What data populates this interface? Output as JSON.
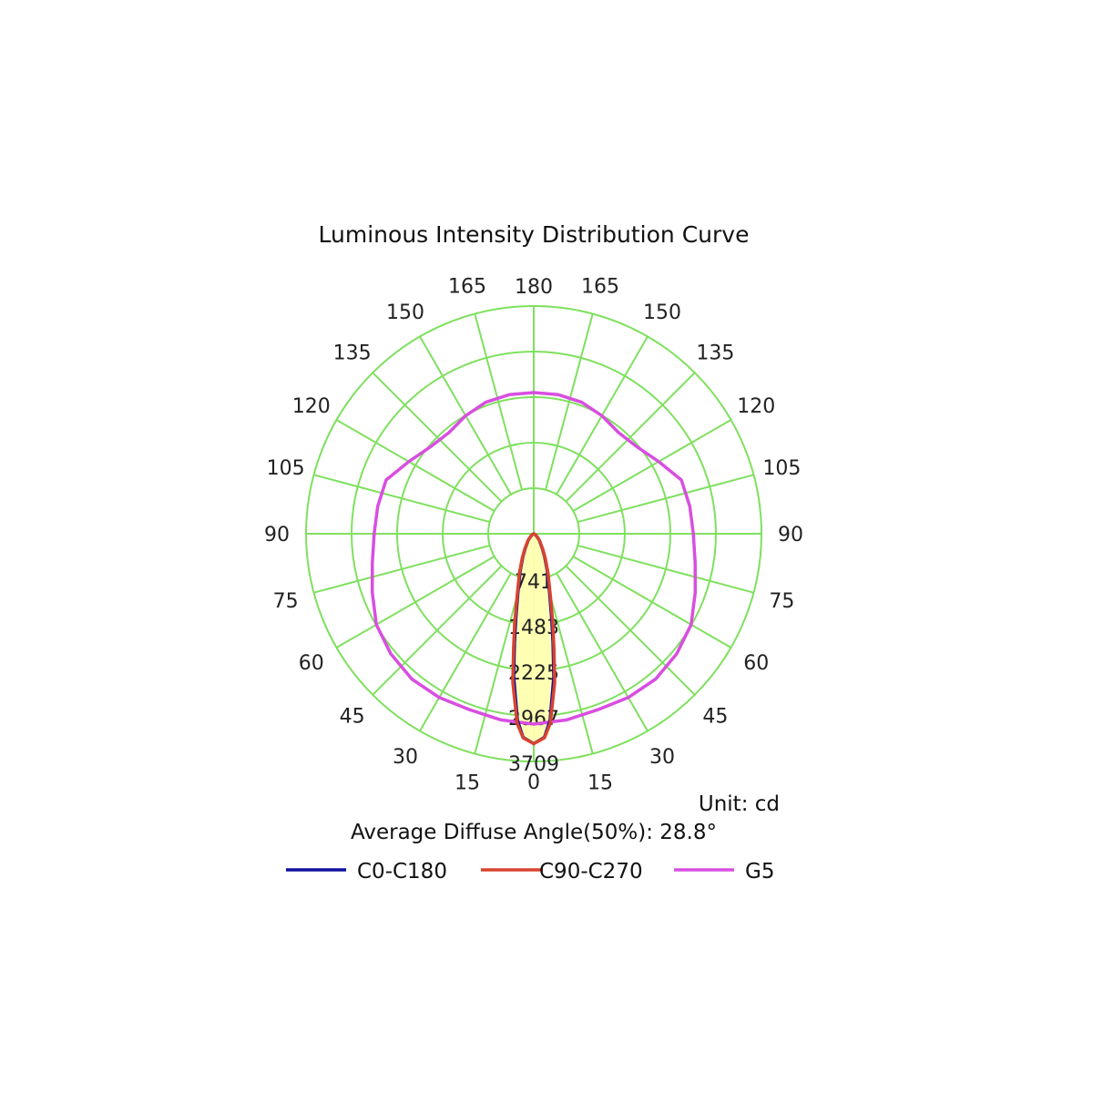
{
  "chart_data": {
    "type": "polar",
    "title": "Luminous Intensity Distribution Curve",
    "unit_label": "Unit: cd",
    "angle_note": "Average Diffuse Angle(50%): 28.8°",
    "radial_ticks": [
      741,
      1483,
      2225,
      2967,
      3709
    ],
    "r_max": 3709,
    "angle_tick_labels": {
      "left": [
        "0",
        "15",
        "30",
        "45",
        "60",
        "75",
        "90",
        "105",
        "120",
        "135",
        "150",
        "165",
        "180"
      ],
      "right": [
        "15",
        "30",
        "45",
        "60",
        "75",
        "90",
        "105",
        "120",
        "135",
        "150",
        "165"
      ]
    },
    "grid_color": "#7fe05f",
    "series": [
      {
        "name": "C0-C180",
        "color": "#1010a0",
        "fill": "#ffffb0",
        "points": [
          {
            "theta": 0,
            "r": 3420
          },
          {
            "theta": 3,
            "r": 3320
          },
          {
            "theta": 5,
            "r": 3050
          },
          {
            "theta": 8,
            "r": 2350
          },
          {
            "theta": 10,
            "r": 1800
          },
          {
            "theta": 12,
            "r": 1400
          },
          {
            "theta": 15,
            "r": 1000
          },
          {
            "theta": 20,
            "r": 640
          },
          {
            "theta": 25,
            "r": 420
          },
          {
            "theta": 30,
            "r": 280
          },
          {
            "theta": 40,
            "r": 140
          },
          {
            "theta": 50,
            "r": 60
          },
          {
            "theta": 60,
            "r": 20
          },
          {
            "theta": 90,
            "r": 0
          }
        ]
      },
      {
        "name": "C90-C270",
        "color": "#d8432f",
        "fill": "#ffffb0",
        "points": [
          {
            "theta": 0,
            "r": 3420
          },
          {
            "theta": 3,
            "r": 3330
          },
          {
            "theta": 5,
            "r": 3100
          },
          {
            "theta": 8,
            "r": 2450
          },
          {
            "theta": 10,
            "r": 1900
          },
          {
            "theta": 12,
            "r": 1500
          },
          {
            "theta": 15,
            "r": 1050
          },
          {
            "theta": 20,
            "r": 680
          },
          {
            "theta": 25,
            "r": 450
          },
          {
            "theta": 30,
            "r": 300
          },
          {
            "theta": 40,
            "r": 150
          },
          {
            "theta": 50,
            "r": 70
          },
          {
            "theta": 60,
            "r": 25
          },
          {
            "theta": 90,
            "r": 0
          }
        ]
      },
      {
        "name": "G5",
        "color": "#d84ee0",
        "points": [
          {
            "theta": 0,
            "r": 3100
          },
          {
            "theta": 10,
            "r": 3080
          },
          {
            "theta": 20,
            "r": 3050
          },
          {
            "theta": 30,
            "r": 3080
          },
          {
            "theta": 40,
            "r": 3090
          },
          {
            "theta": 50,
            "r": 3040
          },
          {
            "theta": 60,
            "r": 2960
          },
          {
            "theta": 70,
            "r": 2800
          },
          {
            "theta": 80,
            "r": 2670
          },
          {
            "theta": 90,
            "r": 2600
          },
          {
            "theta": 100,
            "r": 2580
          },
          {
            "theta": 110,
            "r": 2560
          },
          {
            "theta": 120,
            "r": 2350
          },
          {
            "theta": 130,
            "r": 2200
          },
          {
            "theta": 140,
            "r": 2150
          },
          {
            "theta": 150,
            "r": 2220
          },
          {
            "theta": 160,
            "r": 2280
          },
          {
            "theta": 170,
            "r": 2300
          },
          {
            "theta": 180,
            "r": 2300
          }
        ]
      }
    ],
    "legend": [
      {
        "label": "C0-C180",
        "color": "#1010a0"
      },
      {
        "label": "C90-C270",
        "color": "#d8432f"
      },
      {
        "label": "G5",
        "color": "#d84ee0"
      }
    ]
  }
}
